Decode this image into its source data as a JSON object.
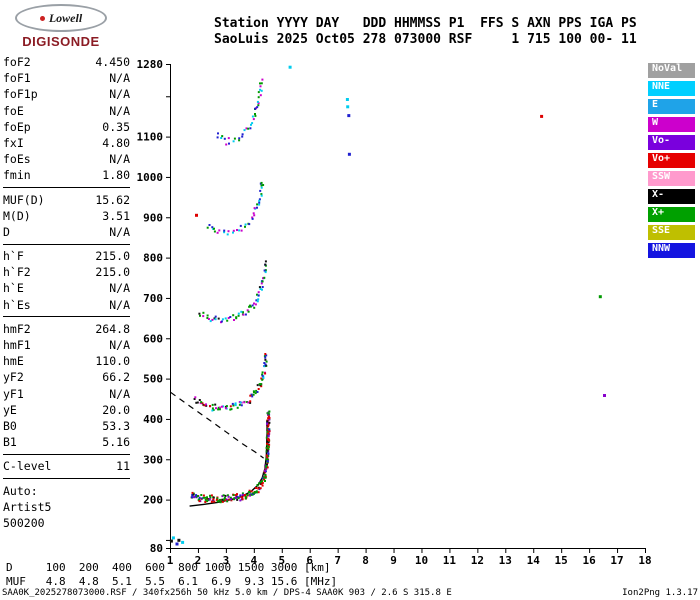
{
  "logo": {
    "brand": "Lowell",
    "product": "DIGISONDE"
  },
  "header": {
    "line1": "Station YYYY DAY   DDD HHMMSS P1  FFS S AXN PPS IGA PS",
    "line2": "SaoLuis 2025 Oct05 278 073000 RSF     1 715 100 00- 11"
  },
  "params": [
    {
      "name": "foF2",
      "value": "4.450"
    },
    {
      "name": "foF1",
      "value": "N/A"
    },
    {
      "name": "foF1p",
      "value": "N/A"
    },
    {
      "name": "foE",
      "value": "N/A"
    },
    {
      "name": "foEp",
      "value": "0.35"
    },
    {
      "name": "fxI",
      "value": "4.80"
    },
    {
      "name": "foEs",
      "value": "N/A"
    },
    {
      "name": "fmin",
      "value": "1.80"
    },
    {
      "sep": true
    },
    {
      "name": "MUF(D)",
      "value": "15.62"
    },
    {
      "name": "M(D)",
      "value": "3.51"
    },
    {
      "name": "D",
      "value": "N/A"
    },
    {
      "sep": true
    },
    {
      "name": "h`F",
      "value": "215.0"
    },
    {
      "name": "h`F2",
      "value": "215.0"
    },
    {
      "name": "h`E",
      "value": "N/A"
    },
    {
      "name": "h`Es",
      "value": "N/A"
    },
    {
      "sep": true
    },
    {
      "name": "hmF2",
      "value": "264.8"
    },
    {
      "name": "hmF1",
      "value": "N/A"
    },
    {
      "name": "hmE",
      "value": "110.0"
    },
    {
      "name": "yF2",
      "value": "66.2"
    },
    {
      "name": "yF1",
      "value": "N/A"
    },
    {
      "name": "yE",
      "value": "20.0"
    },
    {
      "name": "B0",
      "value": "53.3"
    },
    {
      "name": "B1",
      "value": "5.16"
    },
    {
      "sep": true
    },
    {
      "name": "C-level",
      "value": "11"
    },
    {
      "sep": true
    },
    {
      "name": "Auto:",
      "value": ""
    },
    {
      "name": "Artist5",
      "value": ""
    },
    {
      "name": "500200",
      "value": ""
    }
  ],
  "legend": [
    {
      "label": "NoVal",
      "color": "#A0A0A0"
    },
    {
      "label": "NNE",
      "color": "#00CFFF"
    },
    {
      "label": "E",
      "color": "#1FA3E8"
    },
    {
      "label": "W",
      "color": "#CC00CC"
    },
    {
      "label": "Vo-",
      "color": "#7A00DD"
    },
    {
      "label": "Vo+",
      "color": "#E60000"
    },
    {
      "label": "SSW",
      "color": "#FF9ACD"
    },
    {
      "label": "X-",
      "color": "#000000"
    },
    {
      "label": "X+",
      "color": "#00A000"
    },
    {
      "label": "SSE",
      "color": "#BFBF00"
    },
    {
      "label": "NNW",
      "color": "#1414E0"
    }
  ],
  "chart_data": {
    "type": "scatter",
    "title": "",
    "seed": 42,
    "axes": {
      "x": {
        "min": 1,
        "max": 18,
        "unit": "MHz",
        "ticks": [
          1,
          2,
          3,
          4,
          5,
          6,
          7,
          8,
          9,
          10,
          11,
          12,
          13,
          14,
          15,
          16,
          17,
          18
        ]
      },
      "y": {
        "min": 80,
        "max": 1280,
        "unit": "km",
        "tick_marks": [
          80,
          100,
          200,
          300,
          400,
          500,
          600,
          700,
          800,
          900,
          1000,
          1100,
          1200,
          1280
        ],
        "labels": [
          1280,
          1100,
          1000,
          900,
          800,
          700,
          600,
          500,
          400,
          300,
          200,
          80
        ]
      }
    },
    "traces": [
      {
        "name": "F-trace 1 hop",
        "spacing": 1.6,
        "layers": 3,
        "jitter": 3.5,
        "palette": [
          "#DD0000",
          "#DD0000",
          "#DD0000",
          "#009900",
          "#009900",
          "#009900",
          "#111111",
          "#2020D0",
          "#8800CC"
        ],
        "anchors": [
          [
            1.75,
            213
          ],
          [
            1.95,
            208
          ],
          [
            2.2,
            205
          ],
          [
            2.5,
            204
          ],
          [
            2.8,
            204
          ],
          [
            3.1,
            206
          ],
          [
            3.4,
            208
          ],
          [
            3.65,
            212
          ],
          [
            3.9,
            218
          ],
          [
            4.1,
            228
          ],
          [
            4.25,
            242
          ],
          [
            4.35,
            260
          ],
          [
            4.42,
            285
          ],
          [
            4.46,
            320
          ],
          [
            4.48,
            365
          ],
          [
            4.49,
            420
          ]
        ]
      },
      {
        "name": "F-trace 2 hops",
        "spacing": 2.4,
        "layers": 2,
        "jitter": 3.5,
        "palette": [
          "#DD0000",
          "#009900",
          "#2020D0",
          "#CC00CC",
          "#00CCEE",
          "#111111",
          "#009900"
        ],
        "anchors": [
          [
            1.85,
            448
          ],
          [
            2.1,
            438
          ],
          [
            2.45,
            431
          ],
          [
            2.85,
            429
          ],
          [
            3.2,
            432
          ],
          [
            3.5,
            439
          ],
          [
            3.8,
            450
          ],
          [
            4.0,
            464
          ],
          [
            4.15,
            482
          ],
          [
            4.28,
            505
          ],
          [
            4.37,
            535
          ],
          [
            4.43,
            565
          ]
        ]
      },
      {
        "name": "F-trace 3 hops",
        "spacing": 3.2,
        "layers": 2,
        "jitter": 3,
        "palette": [
          "#009900",
          "#00CCEE",
          "#2020D0",
          "#CC00CC",
          "#111111",
          "#009900"
        ],
        "anchors": [
          [
            2.05,
            662
          ],
          [
            2.4,
            652
          ],
          [
            2.75,
            648
          ],
          [
            3.1,
            650
          ],
          [
            3.45,
            657
          ],
          [
            3.7,
            668
          ],
          [
            3.95,
            684
          ],
          [
            4.12,
            705
          ],
          [
            4.25,
            732
          ],
          [
            4.35,
            765
          ],
          [
            4.42,
            800
          ]
        ]
      },
      {
        "name": "F-trace 4 hops",
        "spacing": 4.2,
        "layers": 2,
        "jitter": 3,
        "palette": [
          "#009900",
          "#CC00CC",
          "#2020D0",
          "#00CCEE",
          "#009900"
        ],
        "anchors": [
          [
            2.35,
            878
          ],
          [
            2.7,
            866
          ],
          [
            3.05,
            863
          ],
          [
            3.4,
            870
          ],
          [
            3.65,
            883
          ],
          [
            3.9,
            902
          ],
          [
            4.08,
            928
          ],
          [
            4.2,
            958
          ],
          [
            4.3,
            1000
          ]
        ]
      },
      {
        "name": "F-trace 5 hops",
        "spacing": 4.6,
        "layers": 2,
        "jitter": 3,
        "palette": [
          "#009900",
          "#2020D0",
          "#CC00CC",
          "#00CCEE"
        ],
        "anchors": [
          [
            2.65,
            1103
          ],
          [
            2.95,
            1090
          ],
          [
            3.25,
            1093
          ],
          [
            3.55,
            1106
          ],
          [
            3.8,
            1126
          ],
          [
            4.0,
            1155
          ],
          [
            4.15,
            1195
          ],
          [
            4.28,
            1250
          ]
        ]
      }
    ],
    "isolated_points": [
      [
        1.05,
        97,
        "#111111"
      ],
      [
        1.12,
        105,
        "#00CCEE"
      ],
      [
        1.25,
        90,
        "#2020D0"
      ],
      [
        1.32,
        99,
        "#111111"
      ],
      [
        1.45,
        94,
        "#00CCEE"
      ],
      [
        1.95,
        905,
        "#DD0000"
      ],
      [
        5.3,
        1272,
        "#00CCEE"
      ],
      [
        7.35,
        1192,
        "#00CCEE"
      ],
      [
        7.36,
        1174,
        "#00CCEE"
      ],
      [
        7.4,
        1152,
        "#2020D0"
      ],
      [
        7.42,
        1056,
        "#2020D0"
      ],
      [
        14.3,
        1150,
        "#DD0000"
      ],
      [
        16.4,
        703,
        "#009900"
      ],
      [
        16.55,
        458,
        "#8800CC"
      ]
    ],
    "profile_line": {
      "color": "#000000",
      "anchors": [
        [
          1.7,
          184
        ],
        [
          2.2,
          188
        ],
        [
          2.7,
          193
        ],
        [
          3.2,
          200
        ],
        [
          3.6,
          209
        ],
        [
          3.9,
          220
        ],
        [
          4.15,
          236
        ],
        [
          4.3,
          254
        ],
        [
          4.4,
          277
        ],
        [
          4.45,
          312
        ],
        [
          4.47,
          360
        ],
        [
          4.475,
          398
        ]
      ]
    },
    "muf_dashed_line": {
      "color": "#000000",
      "dash": "6 5",
      "anchors": [
        [
          1.02,
          466
        ],
        [
          1.7,
          432
        ],
        [
          2.4,
          398
        ],
        [
          3.0,
          368
        ],
        [
          3.6,
          338
        ],
        [
          4.05,
          318
        ],
        [
          4.35,
          303
        ]
      ]
    }
  },
  "footer": {
    "dmuf": {
      "label1": "D",
      "distances": [
        100,
        200,
        400,
        600,
        800,
        1000,
        1500,
        3000
      ],
      "unit1": "[km]",
      "label2": "MUF",
      "muf_values": [
        4.8,
        4.8,
        5.1,
        5.5,
        6.1,
        6.9,
        9.3,
        15.6
      ],
      "unit2": "[MHz]"
    },
    "status_left": "SAA0K_2025278073000.RSF / 340fx256h 50 kHz 5.0 km / DPS-4 SAA0K 903 / 2.6 S 315.8 E",
    "status_right": "Ion2Png 1.3.17"
  }
}
